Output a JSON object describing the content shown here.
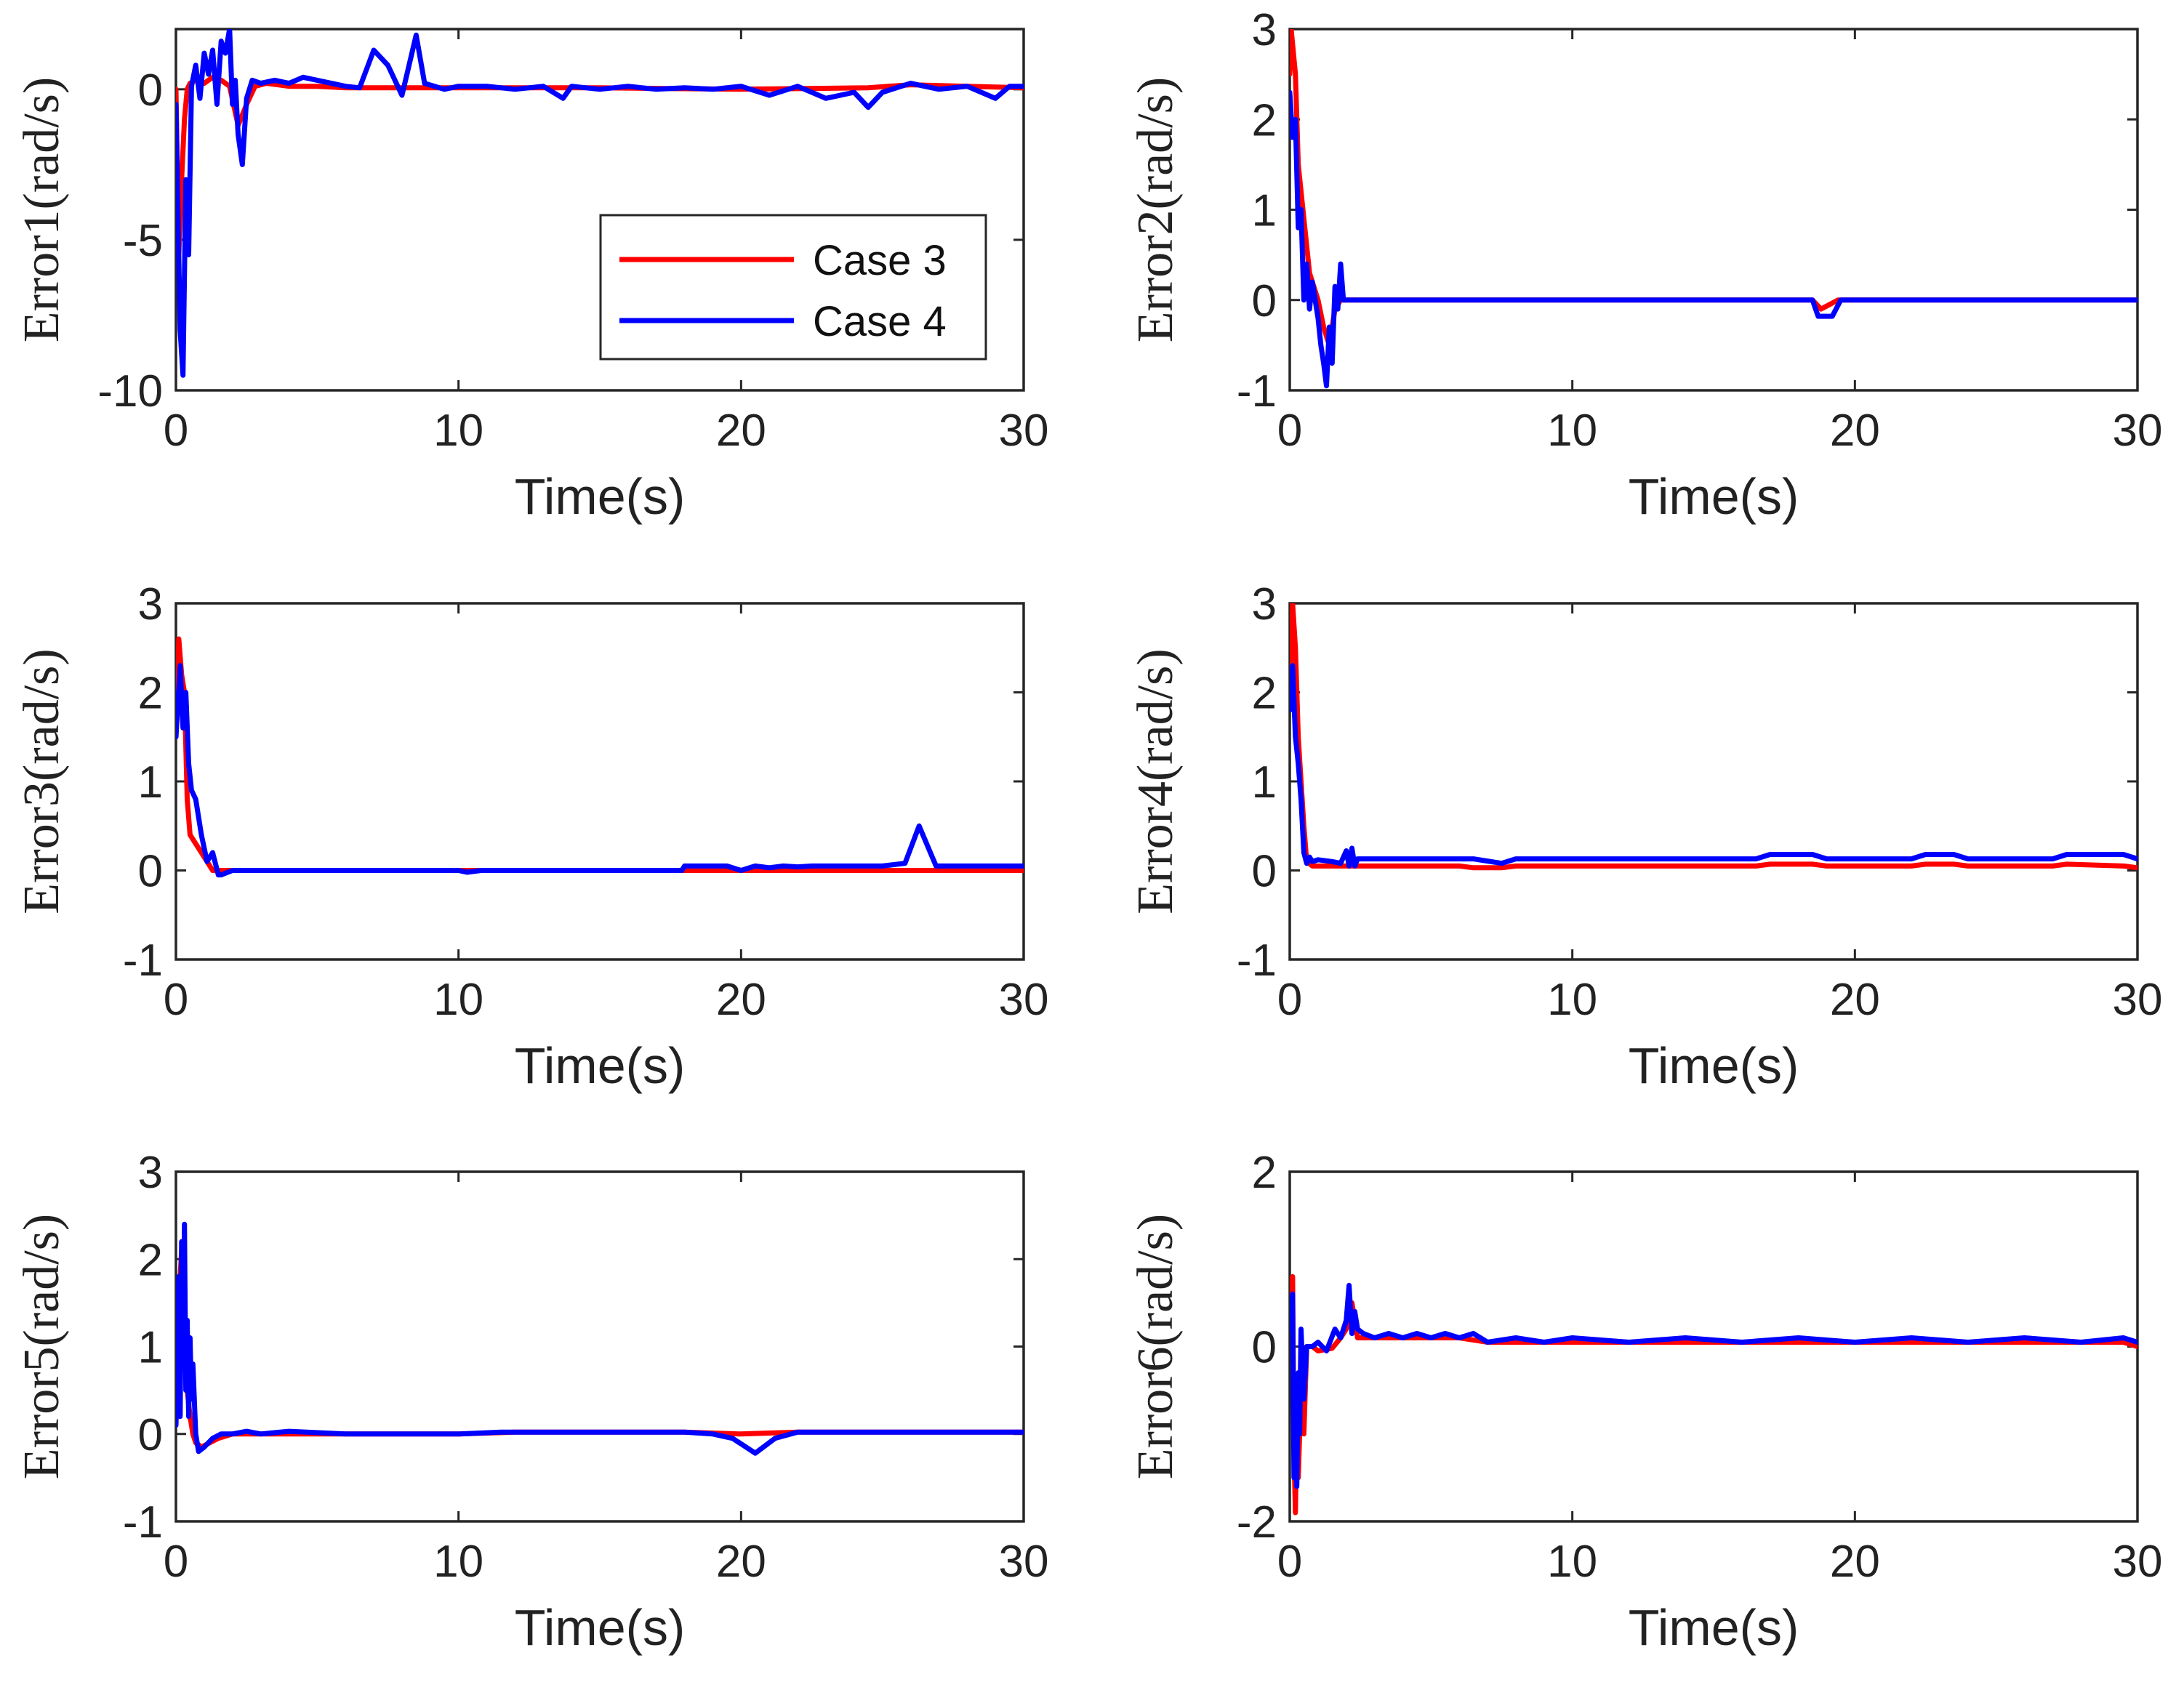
{
  "colors": {
    "case3": "#ff0000",
    "case4": "#0000ff"
  },
  "legend": {
    "entries": [
      "Case 3",
      "Case 4"
    ],
    "location": "inside lower-right of Error1 panel"
  },
  "chart_data": [
    {
      "type": "line",
      "xlabel": "Time(s)",
      "ylabel": "Error1(rad/s)",
      "xlim": [
        0,
        30
      ],
      "ylim": [
        -10,
        2
      ],
      "xticks": [
        0,
        10,
        20,
        30
      ],
      "xtick_labels": [
        "0",
        "10",
        "20",
        "30"
      ],
      "yticks": [
        -10,
        -5,
        0
      ],
      "ytick_labels": [
        "-10",
        "-5",
        "0"
      ],
      "series": [
        {
          "name": "Case 3",
          "x": [
            0,
            0.1,
            0.2,
            0.3,
            0.4,
            0.5,
            0.7,
            1.0,
            1.3,
            1.6,
            1.9,
            2.2,
            2.5,
            2.8,
            3.2,
            4,
            5,
            6,
            8,
            10,
            15,
            20,
            24.5,
            26,
            28,
            30
          ],
          "y": [
            0,
            -5.5,
            -3,
            -1,
            0,
            0.2,
            0.3,
            0.2,
            0.4,
            0.3,
            0.1,
            -1.2,
            -0.5,
            0.1,
            0.2,
            0.1,
            0.1,
            0.05,
            0.05,
            0.05,
            0.05,
            0.0,
            0.05,
            0.15,
            0.1,
            0.05
          ]
        },
        {
          "name": "Case 4",
          "x": [
            0,
            0.15,
            0.25,
            0.35,
            0.45,
            0.55,
            0.7,
            0.85,
            1.0,
            1.15,
            1.3,
            1.45,
            1.6,
            1.75,
            1.9,
            2.0,
            2.1,
            2.2,
            2.35,
            2.5,
            2.7,
            3.0,
            3.5,
            4,
            4.5,
            5,
            5.5,
            6,
            6.5,
            7.0,
            7.5,
            8.0,
            8.5,
            8.8,
            9.5,
            10,
            11,
            12,
            13,
            13.7,
            14,
            15,
            16,
            17,
            18,
            19,
            20,
            21,
            22,
            23,
            24,
            24.5,
            25,
            26,
            27,
            28,
            29,
            29.5,
            30
          ],
          "y": [
            -0.5,
            -8,
            -9.5,
            -3,
            -5.5,
            0.1,
            0.8,
            -0.3,
            1.2,
            0.5,
            1.3,
            -0.5,
            1.6,
            1.2,
            2.0,
            -0.5,
            0.3,
            -1.5,
            -2.5,
            -0.3,
            0.3,
            0.2,
            0.3,
            0.2,
            0.4,
            0.3,
            0.2,
            0.1,
            0.05,
            1.3,
            0.8,
            -0.2,
            1.8,
            0.2,
            0.0,
            0.1,
            0.1,
            0.0,
            0.1,
            -0.3,
            0.1,
            0.0,
            0.1,
            0.0,
            0.05,
            0.0,
            0.1,
            -0.2,
            0.1,
            -0.3,
            -0.1,
            -0.6,
            -0.1,
            0.2,
            0.0,
            0.1,
            -0.3,
            0.1,
            0.1
          ]
        }
      ]
    },
    {
      "type": "line",
      "xlabel": "Time(s)",
      "ylabel": "Error2(rad/s)",
      "xlim": [
        0,
        30
      ],
      "ylim": [
        -1,
        3
      ],
      "xticks": [
        0,
        10,
        20,
        30
      ],
      "xtick_labels": [
        "0",
        "10",
        "20",
        "30"
      ],
      "yticks": [
        -1,
        0,
        1,
        2,
        3
      ],
      "ytick_labels": [
        "-1",
        "0",
        "1",
        "2",
        "3"
      ],
      "series": [
        {
          "name": "Case 3",
          "x": [
            0,
            0.05,
            0.2,
            0.3,
            0.5,
            0.7,
            1.0,
            1.2,
            1.4,
            1.6,
            1.8,
            2.0,
            5,
            10,
            15,
            18.5,
            18.8,
            19.1,
            19.4,
            20,
            25,
            30
          ],
          "y": [
            2.5,
            3.0,
            2.5,
            1.5,
            0.9,
            0.3,
            0.0,
            -0.3,
            -0.5,
            -0.1,
            0.0,
            0.0,
            0,
            0,
            0,
            0,
            -0.1,
            -0.05,
            0,
            0,
            0,
            0
          ]
        },
        {
          "name": "Case 4",
          "x": [
            0,
            0.1,
            0.2,
            0.3,
            0.4,
            0.5,
            0.6,
            0.7,
            0.8,
            0.9,
            1.0,
            1.1,
            1.2,
            1.3,
            1.4,
            1.5,
            1.6,
            1.7,
            1.8,
            1.9,
            2.0,
            5,
            10,
            15,
            18.5,
            18.7,
            19.2,
            19.5,
            20,
            25,
            30
          ],
          "y": [
            2.3,
            1.8,
            2.0,
            0.8,
            1.0,
            0.0,
            0.4,
            -0.1,
            0.2,
            0.0,
            -0.2,
            -0.5,
            -0.7,
            -0.95,
            -0.3,
            -0.7,
            0.15,
            -0.1,
            0.4,
            0.0,
            0.0,
            0,
            0,
            0,
            0,
            -0.18,
            -0.18,
            0,
            0,
            0,
            0
          ]
        }
      ]
    },
    {
      "type": "line",
      "xlabel": "Time(s)",
      "ylabel": "Error3(rad/s)",
      "xlim": [
        0,
        30
      ],
      "ylim": [
        -1,
        3
      ],
      "xticks": [
        0,
        10,
        20,
        30
      ],
      "xtick_labels": [
        "0",
        "10",
        "20",
        "30"
      ],
      "yticks": [
        -1,
        0,
        1,
        2,
        3
      ],
      "ytick_labels": [
        "-1",
        "0",
        "1",
        "2",
        "3"
      ],
      "series": [
        {
          "name": "Case 3",
          "x": [
            0,
            0.1,
            0.2,
            0.3,
            0.4,
            0.5,
            0.7,
            1.0,
            1.3,
            1.6,
            2,
            5,
            10,
            15,
            20,
            25,
            30
          ],
          "y": [
            1.5,
            2.6,
            2.2,
            2.0,
            0.8,
            0.4,
            0.3,
            0.15,
            0.0,
            0.0,
            0.0,
            0,
            0,
            0,
            0,
            0,
            0
          ]
        },
        {
          "name": "Case 4",
          "x": [
            0,
            0.15,
            0.25,
            0.35,
            0.45,
            0.55,
            0.7,
            0.9,
            1.1,
            1.3,
            1.5,
            1.6,
            2,
            5,
            10,
            10.3,
            10.8,
            15,
            17.9,
            18.0,
            19.5,
            20,
            20.5,
            21,
            21.5,
            22,
            22.5,
            23,
            25,
            25.8,
            26.3,
            26.9,
            27.5,
            29,
            29.3,
            30
          ],
          "y": [
            1.5,
            2.3,
            1.6,
            2.0,
            1.2,
            0.9,
            0.8,
            0.4,
            0.1,
            0.2,
            -0.05,
            -0.05,
            0.0,
            0,
            0,
            -0.02,
            0,
            0,
            0,
            0.05,
            0.05,
            0.0,
            0.05,
            0.03,
            0.05,
            0.04,
            0.05,
            0.05,
            0.05,
            0.08,
            0.5,
            0.05,
            0.05,
            0.05,
            0.05,
            0.05
          ]
        }
      ]
    },
    {
      "type": "line",
      "xlabel": "Time(s)",
      "ylabel": "Error4(rad/s)",
      "xlim": [
        0,
        30
      ],
      "ylim": [
        -1,
        3
      ],
      "xticks": [
        0,
        10,
        20,
        30
      ],
      "xtick_labels": [
        "0",
        "10",
        "20",
        "30"
      ],
      "yticks": [
        -1,
        0,
        1,
        2,
        3
      ],
      "ytick_labels": [
        "-1",
        "0",
        "1",
        "2",
        "3"
      ],
      "series": [
        {
          "name": "Case 3",
          "x": [
            0,
            0.1,
            0.2,
            0.3,
            0.4,
            0.5,
            0.6,
            0.8,
            1.0,
            2,
            6,
            6.5,
            7.5,
            8,
            16.5,
            17,
            18.5,
            19,
            22,
            22.5,
            23.5,
            24,
            27,
            27.5,
            29.5,
            30
          ],
          "y": [
            2.0,
            3.0,
            2.5,
            1.5,
            1.0,
            0.5,
            0.1,
            0.05,
            0.05,
            0.05,
            0.05,
            0.03,
            0.03,
            0.05,
            0.05,
            0.07,
            0.07,
            0.05,
            0.05,
            0.07,
            0.07,
            0.05,
            0.05,
            0.07,
            0.05,
            0.03
          ]
        },
        {
          "name": "Case 4",
          "x": [
            0,
            0.1,
            0.2,
            0.3,
            0.4,
            0.5,
            0.6,
            0.7,
            0.8,
            1.0,
            1.5,
            1.8,
            2.0,
            2.1,
            2.2,
            2.3,
            2.4,
            5,
            6.5,
            7.5,
            8,
            16.5,
            17,
            18.5,
            19,
            22,
            22.5,
            23.5,
            24,
            27,
            27.5,
            29.5,
            30
          ],
          "y": [
            1.8,
            2.3,
            1.5,
            1.2,
            0.8,
            0.2,
            0.08,
            0.15,
            0.1,
            0.12,
            0.1,
            0.08,
            0.22,
            0.05,
            0.25,
            0.05,
            0.13,
            0.13,
            0.13,
            0.08,
            0.13,
            0.13,
            0.18,
            0.18,
            0.13,
            0.13,
            0.18,
            0.18,
            0.13,
            0.13,
            0.18,
            0.18,
            0.13
          ]
        }
      ]
    },
    {
      "type": "line",
      "xlabel": "Time(s)",
      "ylabel": "Error5(rad/s)",
      "xlim": [
        0,
        30
      ],
      "ylim": [
        -1,
        3
      ],
      "xticks": [
        0,
        10,
        20,
        30
      ],
      "xtick_labels": [
        "0",
        "10",
        "20",
        "30"
      ],
      "yticks": [
        -1,
        0,
        1,
        2,
        3
      ],
      "ytick_labels": [
        "-1",
        "0",
        "1",
        "2",
        "3"
      ],
      "series": [
        {
          "name": "Case 3",
          "x": [
            0,
            0.1,
            0.2,
            0.3,
            0.4,
            0.5,
            0.6,
            0.7,
            0.9,
            1.2,
            1.5,
            2,
            3,
            4,
            5,
            6,
            8,
            10,
            12,
            15,
            18,
            20,
            22,
            25,
            30
          ],
          "y": [
            0.1,
            1.5,
            2.1,
            1.2,
            0.5,
            0.2,
            0.0,
            -0.1,
            -0.15,
            -0.1,
            -0.05,
            0.0,
            0.0,
            0.0,
            0.0,
            0.0,
            0.0,
            0.0,
            0.02,
            0.02,
            0.02,
            0.0,
            0.02,
            0.02,
            0.02
          ]
        },
        {
          "name": "Case 4",
          "x": [
            0,
            0.1,
            0.15,
            0.2,
            0.25,
            0.3,
            0.35,
            0.4,
            0.45,
            0.5,
            0.55,
            0.6,
            0.7,
            0.8,
            1.0,
            1.3,
            1.6,
            2.0,
            2.5,
            3,
            4,
            6,
            8,
            10,
            11.5,
            15,
            18,
            19,
            19.7,
            20.5,
            21.2,
            22,
            25,
            30
          ],
          "y": [
            0.1,
            1.8,
            0.2,
            2.2,
            0.8,
            2.4,
            0.5,
            1.3,
            0.2,
            1.1,
            0.4,
            0.8,
            0.0,
            -0.2,
            -0.15,
            -0.05,
            0.0,
            0.0,
            0.03,
            0.0,
            0.03,
            0.0,
            0.0,
            0.0,
            0.02,
            0.02,
            0.02,
            0.0,
            -0.05,
            -0.22,
            -0.05,
            0.02,
            0.02,
            0.02
          ]
        }
      ]
    },
    {
      "type": "line",
      "xlabel": "Time(s)",
      "ylabel": "Error6(rad/s)",
      "xlim": [
        0,
        30
      ],
      "ylim": [
        -2,
        2
      ],
      "xticks": [
        0,
        10,
        20,
        30
      ],
      "xtick_labels": [
        "0",
        "10",
        "20",
        "30"
      ],
      "yticks": [
        -2,
        0,
        2
      ],
      "ytick_labels": [
        "-2",
        "0",
        "2"
      ],
      "series": [
        {
          "name": "Case 3",
          "x": [
            0,
            0.1,
            0.15,
            0.2,
            0.25,
            0.3,
            0.4,
            0.5,
            0.6,
            0.8,
            1.0,
            1.5,
            1.8,
            2.0,
            2.2,
            2.4,
            3,
            4,
            5,
            6,
            7,
            10,
            15,
            20,
            25,
            29.5,
            30
          ],
          "y": [
            0.5,
            0.8,
            -1.2,
            -1.9,
            -0.8,
            -1.5,
            -0.5,
            -1.0,
            0.0,
            0.0,
            -0.05,
            -0.02,
            0.1,
            0.2,
            0.5,
            0.1,
            0.1,
            0.1,
            0.1,
            0.1,
            0.05,
            0.05,
            0.05,
            0.05,
            0.05,
            0.05,
            0.0
          ]
        },
        {
          "name": "Case 4",
          "x": [
            0,
            0.1,
            0.15,
            0.2,
            0.25,
            0.3,
            0.35,
            0.4,
            0.5,
            0.6,
            0.8,
            1.0,
            1.3,
            1.6,
            1.8,
            2.0,
            2.1,
            2.2,
            2.3,
            2.4,
            2.6,
            3,
            3.5,
            4,
            4.5,
            5,
            5.5,
            6,
            6.5,
            7,
            8,
            9,
            10,
            12,
            14,
            16,
            18,
            20,
            22,
            24,
            26,
            28,
            29.5,
            30
          ],
          "y": [
            0.2,
            0.6,
            -1.5,
            -1.0,
            -1.6,
            -0.3,
            -1.0,
            0.2,
            -0.6,
            0.0,
            0.0,
            0.05,
            -0.05,
            0.2,
            0.1,
            0.3,
            0.7,
            0.15,
            0.4,
            0.2,
            0.15,
            0.1,
            0.15,
            0.1,
            0.15,
            0.1,
            0.15,
            0.1,
            0.15,
            0.05,
            0.1,
            0.05,
            0.1,
            0.05,
            0.1,
            0.05,
            0.1,
            0.05,
            0.1,
            0.05,
            0.1,
            0.05,
            0.1,
            0.05
          ]
        }
      ]
    }
  ]
}
